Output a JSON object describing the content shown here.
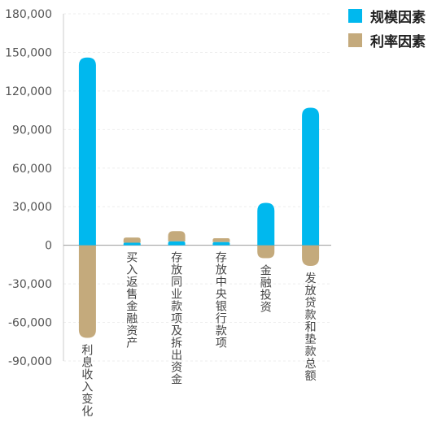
{
  "chart_data": {
    "type": "bar",
    "stacked": true,
    "categories": [
      "利息收入变化",
      "买入返售金融资产",
      "存放同业款项及拆出资金",
      "存放中央银行款项",
      "金融投资",
      "发放贷款和垫款总额"
    ],
    "series": [
      {
        "name": "规模因素",
        "color": "#00b8ee",
        "values": [
          146000,
          2000,
          3000,
          2500,
          33000,
          107000
        ]
      },
      {
        "name": "利率因素",
        "color": "#c4aa7c",
        "values": [
          -72000,
          4000,
          8000,
          3000,
          -10000,
          -16000
        ]
      }
    ],
    "ylim": [
      -90000,
      180000
    ],
    "y_ticks": [
      "180,000",
      "150,000",
      "120,000",
      "90,000",
      "60,000",
      "30,000",
      "0",
      "-30,000",
      "-60,000",
      "-90,000"
    ],
    "grid": true,
    "legend_position": "top-right"
  }
}
